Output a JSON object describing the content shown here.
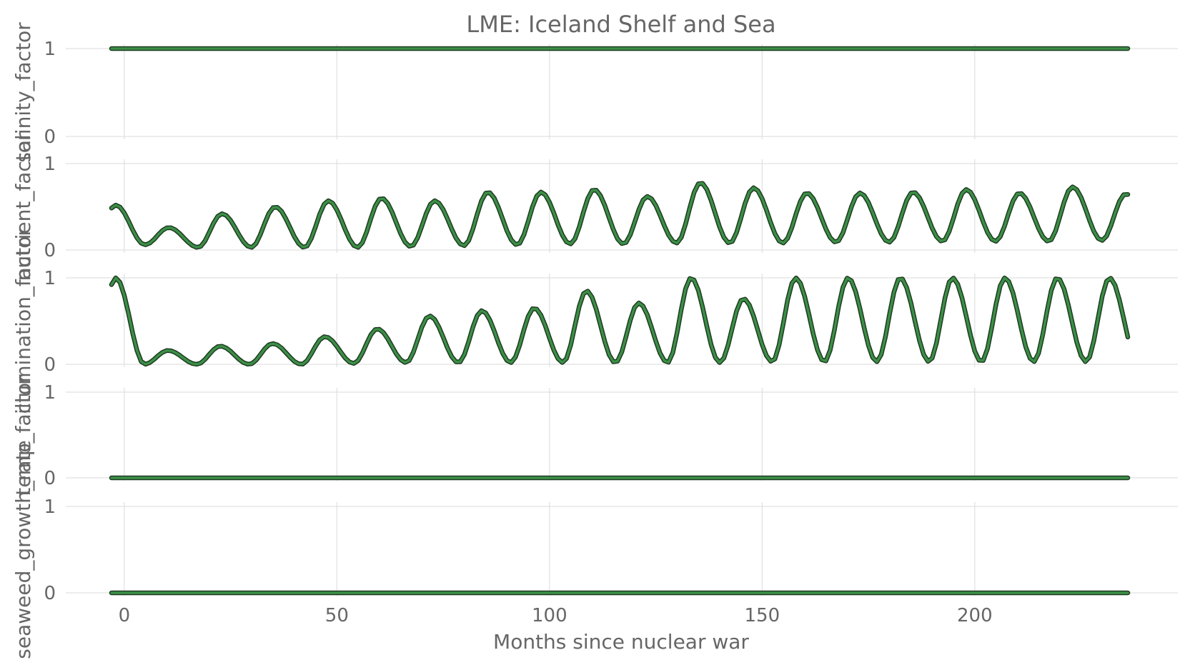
{
  "chart_data": {
    "type": "line",
    "title": "LME: Iceland Shelf and Sea",
    "xlabel": "Months since nuclear war",
    "xlim": [
      -3,
      236
    ],
    "x_ticks": [
      0,
      50,
      100,
      150,
      200
    ],
    "x_tick_labels": [
      "0",
      "50",
      "100",
      "150",
      "200"
    ],
    "grid": true,
    "line_color": "#3c8f46",
    "line_edge_color": "#1e3a22",
    "panels": [
      {
        "name": "salinity_factor",
        "ylabel": "salinity_factor",
        "ylim": [
          0,
          1
        ],
        "y_tick_labels": [
          "1",
          "0"
        ],
        "pattern": "constant",
        "constant": 1.0
      },
      {
        "name": "nutrient_factor",
        "ylabel": "nutrient_factor",
        "ylim": [
          0,
          1
        ],
        "y_tick_labels": [
          "1",
          "0"
        ],
        "pattern": "seasonal",
        "period_months": 12.5,
        "peaks": [
          0.52,
          0.26,
          0.42,
          0.5,
          0.57,
          0.6,
          0.57,
          0.67,
          0.67,
          0.7,
          0.62,
          0.78,
          0.72,
          0.66,
          0.66,
          0.67,
          0.7,
          0.66,
          0.73,
          0.65
        ],
        "troughs": [
          0.06,
          0.03,
          0.03,
          0.03,
          0.03,
          0.04,
          0.05,
          0.06,
          0.07,
          0.07,
          0.08,
          0.08,
          0.08,
          0.09,
          0.09,
          0.1,
          0.1,
          0.1,
          0.11,
          0.12
        ]
      },
      {
        "name": "illumination_factor",
        "ylabel": "illumination_factor",
        "ylim": [
          0,
          1
        ],
        "y_tick_labels": [
          "1",
          "0"
        ],
        "pattern": "seasonal",
        "period_months": 12.3,
        "peaks": [
          1.0,
          0.16,
          0.21,
          0.24,
          0.32,
          0.41,
          0.56,
          0.62,
          0.65,
          0.85,
          0.71,
          1.0,
          0.76,
          1.0,
          1.0,
          1.0,
          1.0,
          1.0,
          1.0,
          1.0
        ],
        "troughs": [
          0.0,
          0.0,
          0.0,
          0.0,
          0.01,
          0.02,
          0.02,
          0.02,
          0.02,
          0.02,
          0.02,
          0.02,
          0.03,
          0.03,
          0.03,
          0.03,
          0.03,
          0.03,
          0.03,
          0.03
        ]
      },
      {
        "name": "temp_factor",
        "ylabel": "temp_factor",
        "ylim": [
          0,
          1
        ],
        "y_tick_labels": [
          "1",
          "0"
        ],
        "pattern": "constant",
        "constant": 0.0
      },
      {
        "name": "seaweed_growth_rate",
        "ylabel": "seaweed_growth_rate",
        "ylim": [
          0,
          1
        ],
        "y_tick_labels": [
          "1",
          "0"
        ],
        "pattern": "constant",
        "constant": 0.0
      }
    ]
  }
}
